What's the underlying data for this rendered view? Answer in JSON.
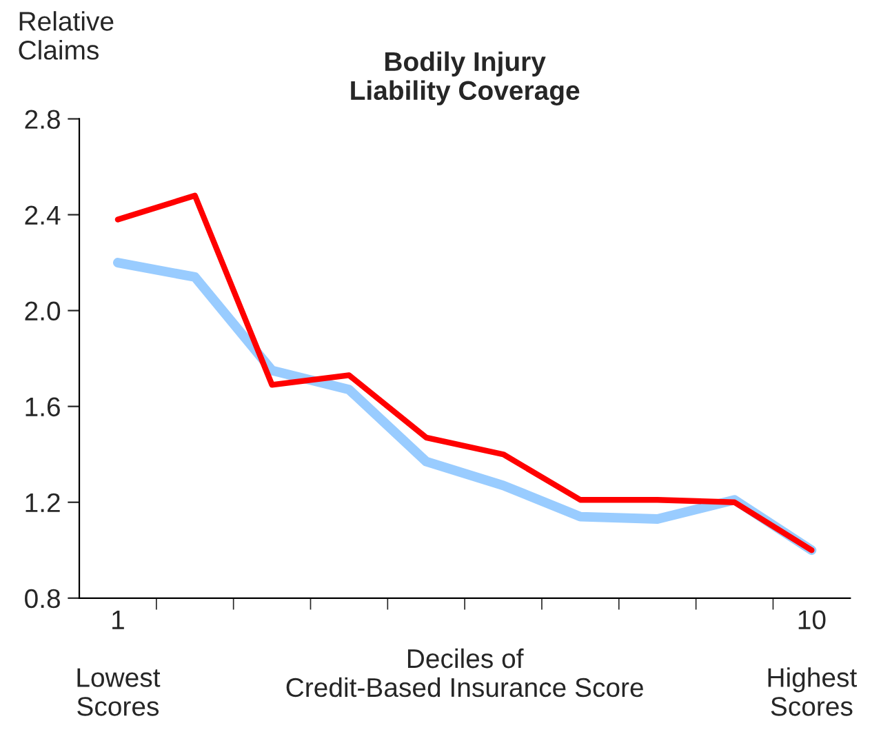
{
  "chart_data": {
    "type": "line",
    "title": "Bodily Injury\nLiability Coverage",
    "ylabel": "Relative\nClaims",
    "xlabel": "Deciles of\nCredit-Based Insurance Score",
    "categories": [
      "1\n\nLowest\nScores",
      null,
      null,
      null,
      null,
      null,
      null,
      null,
      null,
      "10\n\nHighest\nScores"
    ],
    "series": [
      {
        "color": "#99ccff",
        "values": [
          2.2,
          2.14,
          1.75,
          1.67,
          1.37,
          1.27,
          1.14,
          1.13,
          1.21,
          1.0
        ]
      },
      {
        "color": "#ff0000",
        "values": [
          2.38,
          2.48,
          1.69,
          1.73,
          1.47,
          1.4,
          1.21,
          1.21,
          1.2,
          1.0
        ]
      }
    ],
    "ylim": [
      0.8,
      2.8
    ],
    "yticks": [
      {
        "value": 0.8,
        "label": "0.8"
      },
      {
        "value": 1.2,
        "label": "1.2"
      },
      {
        "value": 1.6,
        "label": "1.6"
      },
      {
        "value": 2.0,
        "label": "2.0"
      },
      {
        "value": 2.4,
        "label": "2.4"
      },
      {
        "value": 2.8,
        "label": "2.8"
      }
    ],
    "grid": false,
    "legend": false,
    "marker": "none",
    "line_style": "solid"
  }
}
